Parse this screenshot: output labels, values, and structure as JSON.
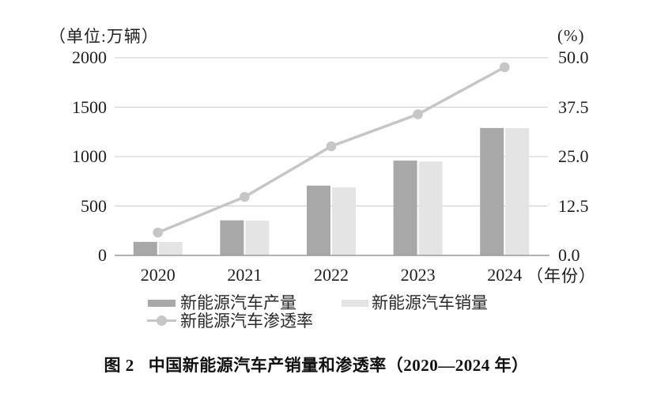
{
  "figure": {
    "caption_label": "图 2",
    "caption_text": "中国新能源汽车产销量和渗透率（2020—2024 年）"
  },
  "chart_data": {
    "type": "combo",
    "title": "中国新能源汽车产销量和渗透率（2020—2024 年）",
    "categories": [
      "2020",
      "2021",
      "2022",
      "2023",
      "2024"
    ],
    "series": [
      {
        "name": "新能源汽车产量",
        "type": "bar",
        "axis": "left",
        "color": "#a8a8a8",
        "values": [
          137,
          355,
          706,
          959,
          1289
        ]
      },
      {
        "name": "新能源汽车销量",
        "type": "bar",
        "axis": "left",
        "color": "#e4e4e4",
        "values": [
          137,
          352,
          689,
          950,
          1287
        ]
      },
      {
        "name": "新能源汽车渗透率",
        "type": "line",
        "axis": "right",
        "color": "#c6c6c6",
        "values": [
          5.8,
          14.8,
          27.6,
          35.7,
          47.6
        ]
      }
    ],
    "left_axis": {
      "unit_label": "（单位:万辆）",
      "ticks": [
        0,
        500,
        1000,
        1500,
        2000
      ],
      "range": [
        0,
        2000
      ]
    },
    "right_axis": {
      "unit_label": "(%)",
      "tick_labels": [
        "0.0",
        "12.5",
        "25.0",
        "37.5",
        "50.0"
      ],
      "tick_values": [
        0,
        12.5,
        25,
        37.5,
        50
      ],
      "range": [
        0,
        50
      ]
    },
    "x_axis": {
      "suffix_label": "（年份）"
    },
    "grid": true,
    "legend_position": "bottom"
  },
  "colors": {
    "gridline": "#cdcdcd",
    "axis_line": "#9a9a9a",
    "text": "#1f1f1f"
  }
}
